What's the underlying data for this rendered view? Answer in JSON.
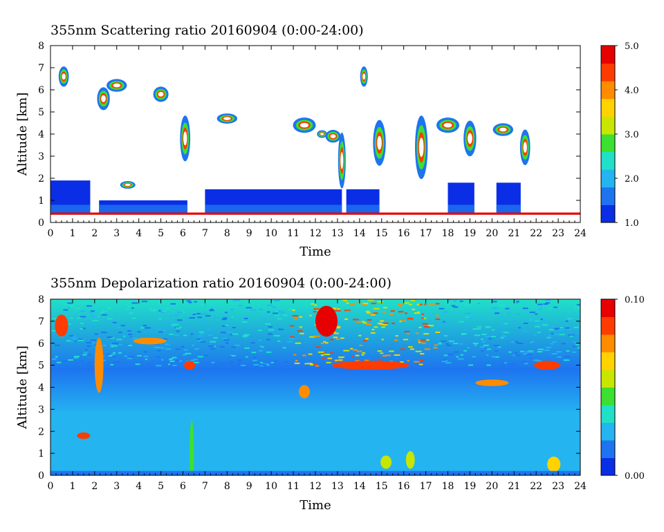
{
  "chart_data": [
    {
      "type": "heatmap",
      "title": "355nm Scattering ratio  20160904 (0:00-24:00)",
      "xlabel": "Time",
      "ylabel": "Altitude [km]",
      "xlim": [
        0,
        24
      ],
      "ylim": [
        0,
        8
      ],
      "x_ticks": [
        "0",
        "1",
        "2",
        "3",
        "4",
        "5",
        "6",
        "7",
        "8",
        "9",
        "10",
        "11",
        "12",
        "13",
        "14",
        "15",
        "16",
        "17",
        "18",
        "19",
        "20",
        "21",
        "22",
        "23",
        "24"
      ],
      "y_ticks": [
        "0",
        "1",
        "2",
        "3",
        "4",
        "5",
        "6",
        "7",
        "8"
      ],
      "colorbar": {
        "range": [
          1.0,
          5.0
        ],
        "tick_labels": [
          "1.0",
          "2.0",
          "3.0",
          "4.0",
          "5.0"
        ],
        "tick_values": [
          1.0,
          2.0,
          3.0,
          4.0,
          5.0
        ]
      },
      "colors": [
        "#0a2ee6",
        "#1e74f0",
        "#24b4f0",
        "#20e0c8",
        "#3ce030",
        "#c8e600",
        "#ffd200",
        "#ff8c00",
        "#ff3c00",
        "#e60000"
      ]
    },
    {
      "type": "heatmap",
      "title": "355nm Depolarization ratio  20160904 (0:00-24:00)",
      "xlabel": "Time",
      "ylabel": "Altitude [km]",
      "xlim": [
        0,
        24
      ],
      "ylim": [
        0,
        8
      ],
      "x_ticks": [
        "0",
        "1",
        "2",
        "3",
        "4",
        "5",
        "6",
        "7",
        "8",
        "9",
        "10",
        "11",
        "12",
        "13",
        "14",
        "15",
        "16",
        "17",
        "18",
        "19",
        "20",
        "21",
        "22",
        "23",
        "24"
      ],
      "y_ticks": [
        "0",
        "1",
        "2",
        "3",
        "4",
        "5",
        "6",
        "7",
        "8"
      ],
      "colorbar": {
        "range": [
          0.0,
          0.1
        ],
        "tick_labels": [
          "0.00",
          "0.10"
        ],
        "tick_values": [
          0.0,
          0.1
        ]
      },
      "colors": [
        "#0a2ee6",
        "#1e74f0",
        "#24b4f0",
        "#20e0c8",
        "#3ce030",
        "#c8e600",
        "#ffd200",
        "#ff8c00",
        "#ff3c00",
        "#e60000"
      ]
    }
  ]
}
